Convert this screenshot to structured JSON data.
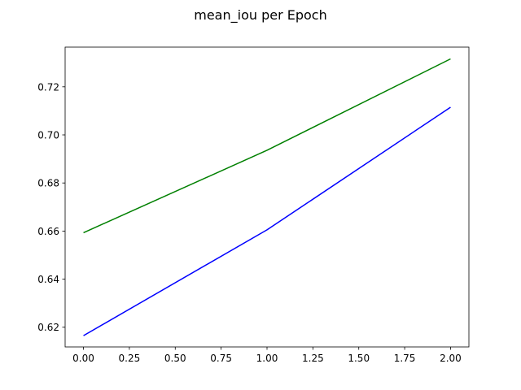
{
  "chart_data": {
    "type": "line",
    "title": "mean_iou per Epoch",
    "xlabel": "",
    "ylabel": "",
    "x": [
      0,
      1,
      2
    ],
    "xlim": [
      -0.1,
      2.1
    ],
    "ylim": [
      0.6118,
      0.7365
    ],
    "xticks": [
      0.0,
      0.25,
      0.5,
      0.75,
      1.0,
      1.25,
      1.5,
      1.75,
      2.0
    ],
    "xtick_labels": [
      "0.00",
      "0.25",
      "0.50",
      "0.75",
      "1.00",
      "1.25",
      "1.50",
      "1.75",
      "2.00"
    ],
    "yticks": [
      0.62,
      0.64,
      0.66,
      0.68,
      0.7,
      0.72
    ],
    "ytick_labels": [
      "0.62",
      "0.64",
      "0.66",
      "0.68",
      "0.70",
      "0.72"
    ],
    "grid": false,
    "legend": "none",
    "series": [
      {
        "color": "#0000ff",
        "values": [
          0.6165,
          0.6605,
          0.7115
        ]
      },
      {
        "color": "#008000",
        "values": [
          0.6593,
          0.6936,
          0.7316
        ]
      }
    ]
  }
}
